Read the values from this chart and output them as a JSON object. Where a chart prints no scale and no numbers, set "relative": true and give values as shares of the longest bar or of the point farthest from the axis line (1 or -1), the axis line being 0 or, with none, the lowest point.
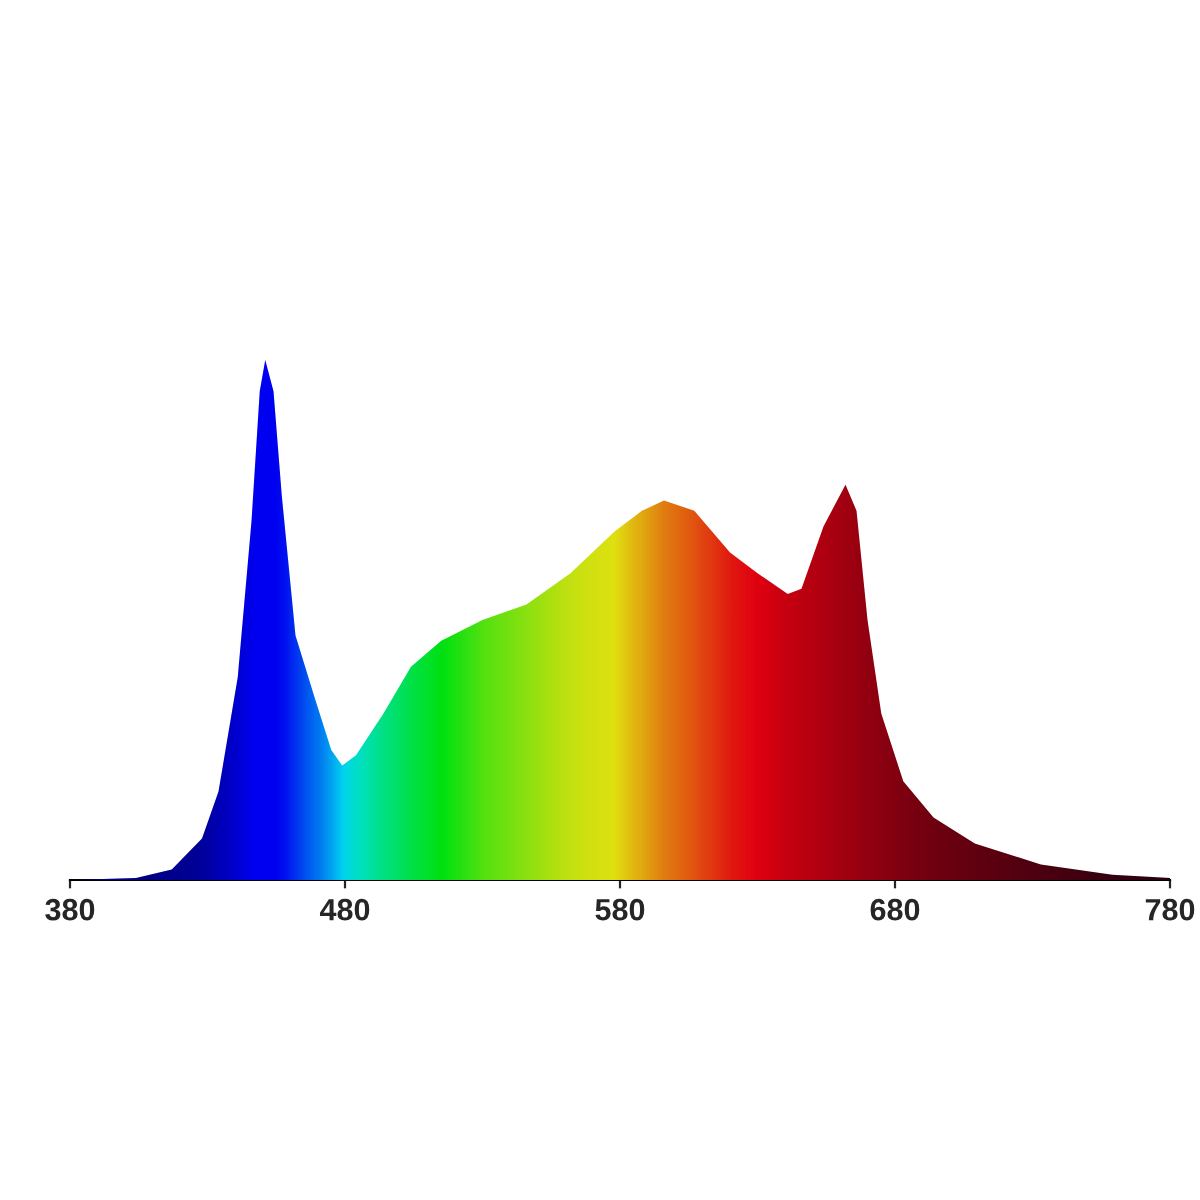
{
  "chart_data": {
    "type": "area",
    "relative": true,
    "tick_labels": "x",
    "x": [
      380,
      404,
      417,
      428,
      434,
      441,
      446,
      449,
      451,
      454,
      457,
      462,
      469,
      475,
      479,
      484,
      494,
      504,
      515,
      530,
      546,
      562,
      578,
      588,
      596,
      607,
      620,
      630,
      641,
      646,
      654,
      662,
      666,
      670,
      675,
      683,
      694,
      709,
      733,
      759,
      780
    ],
    "values": [
      0,
      0.004,
      0.02,
      0.08,
      0.17,
      0.39,
      0.69,
      0.94,
      1.0,
      0.94,
      0.74,
      0.47,
      0.35,
      0.25,
      0.22,
      0.24,
      0.32,
      0.41,
      0.46,
      0.5,
      0.53,
      0.59,
      0.67,
      0.71,
      0.73,
      0.71,
      0.63,
      0.59,
      0.55,
      0.56,
      0.68,
      0.76,
      0.71,
      0.5,
      0.32,
      0.19,
      0.12,
      0.07,
      0.03,
      0.01,
      0.004
    ],
    "colors": [
      "#000080",
      "#000080",
      "#000090",
      "#0000a0",
      "#0000c0",
      "#0000e0",
      "#0000ff",
      "#0000ff",
      "#0000ff",
      "#0000ff",
      "#0010ff",
      "#0040ff",
      "#0080ff",
      "#00c0ff",
      "#00f0ff",
      "#00ffd0",
      "#00ff80",
      "#00ff40",
      "#00ff00",
      "#60ff00",
      "#a0ff00",
      "#e0ff00",
      "#ffff00",
      "#ffc000",
      "#ff9000",
      "#ff6000",
      "#ff2000",
      "#ff0000",
      "#e00000",
      "#d80000",
      "#c80000",
      "#b80000",
      "#b00000",
      "#a80000",
      "#a00000",
      "#900000",
      "#800000",
      "#700000",
      "#580000",
      "#400000",
      "#300000"
    ],
    "xlim": [
      380,
      780
    ],
    "xticks": [
      380,
      480,
      580,
      680,
      780
    ],
    "grid": false
  }
}
